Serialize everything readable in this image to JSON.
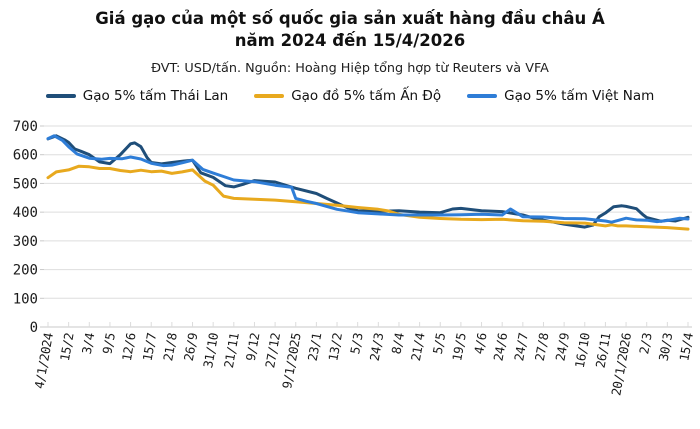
{
  "header": {
    "title_line1": "Giá gạo của một số quốc gia sản xuất hàng đầu châu Á",
    "title_line2": "năm 2024 đến 15/4/2026",
    "subtitle": "ĐVT: USD/tấn. Nguồn: Hoàng Hiệp tổng hợp từ Reuters và VFA"
  },
  "colors": {
    "grid": "#DEDEDE",
    "axis": "#C9C9C9",
    "tick": "#DCDCDC",
    "tick_text": "#1A1A1A",
    "background": "#FFFFFF"
  },
  "chart_data": {
    "type": "line",
    "unit": "USD/tấn",
    "ylim": [
      0,
      700
    ],
    "y_ticks": [
      0,
      100,
      200,
      300,
      400,
      500,
      600,
      700
    ],
    "grid": "horizontal",
    "legend_position": "top",
    "x_labels": [
      "4/1/2024",
      "15/2",
      "3/4",
      "9/5",
      "12/6",
      "15/7",
      "21/8",
      "26/9",
      "31/10",
      "21/11",
      "9/12",
      "27/12",
      "9/1/2025",
      "23/1",
      "13/2",
      "5/3",
      "24/3",
      "8/4",
      "21/4",
      "5/5",
      "19/5",
      "4/6",
      "24/6",
      "24/7",
      "27/8",
      "24/9",
      "16/10",
      "26/11",
      "20/1/2026",
      "2/3",
      "30/3",
      "15/4"
    ],
    "x_note": "points use fractional label-index positions to capture moves between labeled dates",
    "series": [
      {
        "name": "Gạo 5% tấm Thái Lan",
        "color": "#1F4E79",
        "points": [
          [
            0,
            655
          ],
          [
            0.4,
            666
          ],
          [
            0.8,
            652
          ],
          [
            1,
            643
          ],
          [
            1.3,
            620
          ],
          [
            1.6,
            612
          ],
          [
            2,
            600
          ],
          [
            2.5,
            575
          ],
          [
            3,
            569
          ],
          [
            3.5,
            600
          ],
          [
            4,
            638
          ],
          [
            4.2,
            641
          ],
          [
            4.5,
            628
          ],
          [
            4.8,
            590
          ],
          [
            5,
            573
          ],
          [
            5.5,
            568
          ],
          [
            6,
            573
          ],
          [
            6.6,
            578
          ],
          [
            7,
            581
          ],
          [
            7.4,
            537
          ],
          [
            8,
            521
          ],
          [
            8.6,
            492
          ],
          [
            9,
            488
          ],
          [
            9.5,
            498
          ],
          [
            10,
            510
          ],
          [
            11,
            505
          ],
          [
            12,
            483
          ],
          [
            13,
            465
          ],
          [
            13.5,
            448
          ],
          [
            14,
            432
          ],
          [
            14.5,
            415
          ],
          [
            15,
            405
          ],
          [
            16,
            403
          ],
          [
            17,
            405
          ],
          [
            18,
            400
          ],
          [
            19,
            398
          ],
          [
            19.6,
            411
          ],
          [
            20,
            413
          ],
          [
            21,
            405
          ],
          [
            22,
            402
          ],
          [
            23,
            390
          ],
          [
            23.5,
            380
          ],
          [
            24,
            372
          ],
          [
            25,
            358
          ],
          [
            26,
            348
          ],
          [
            26.4,
            355
          ],
          [
            26.7,
            384
          ],
          [
            27,
            397
          ],
          [
            27.4,
            419
          ],
          [
            27.8,
            422
          ],
          [
            28,
            420
          ],
          [
            28.5,
            412
          ],
          [
            28.8,
            392
          ],
          [
            29,
            381
          ],
          [
            29.7,
            368
          ],
          [
            30,
            372
          ],
          [
            30.4,
            369
          ],
          [
            31,
            382
          ]
        ]
      },
      {
        "name": "Gạo đồ 5% tấm Ấn Độ",
        "color": "#E8A91E",
        "points": [
          [
            0,
            520
          ],
          [
            0.4,
            540
          ],
          [
            1,
            547
          ],
          [
            1.5,
            560
          ],
          [
            2,
            558
          ],
          [
            2.5,
            552
          ],
          [
            3,
            552
          ],
          [
            3.5,
            545
          ],
          [
            4,
            541
          ],
          [
            4.5,
            546
          ],
          [
            5,
            541
          ],
          [
            5.5,
            543
          ],
          [
            6,
            535
          ],
          [
            6.5,
            540
          ],
          [
            7,
            547
          ],
          [
            7.6,
            508
          ],
          [
            8,
            494
          ],
          [
            8.5,
            456
          ],
          [
            9,
            448
          ],
          [
            10,
            445
          ],
          [
            11,
            442
          ],
          [
            12,
            436
          ],
          [
            13,
            430
          ],
          [
            14,
            424
          ],
          [
            15,
            416
          ],
          [
            16,
            410
          ],
          [
            16.5,
            404
          ],
          [
            17,
            392
          ],
          [
            18,
            382
          ],
          [
            19,
            378
          ],
          [
            20,
            375
          ],
          [
            21,
            374
          ],
          [
            22,
            375
          ],
          [
            23,
            370
          ],
          [
            24,
            368
          ],
          [
            25,
            363
          ],
          [
            26,
            362
          ],
          [
            26.5,
            357
          ],
          [
            27,
            352
          ],
          [
            27.3,
            356
          ],
          [
            27.6,
            352
          ],
          [
            28,
            352
          ],
          [
            29,
            349
          ],
          [
            30,
            346
          ],
          [
            31,
            341
          ]
        ]
      },
      {
        "name": "Gạo 5% tấm Việt Nam",
        "color": "#2E7DD7",
        "points": [
          [
            0,
            656
          ],
          [
            0.3,
            666
          ],
          [
            0.7,
            650
          ],
          [
            1,
            628
          ],
          [
            1.4,
            603
          ],
          [
            2,
            588
          ],
          [
            2.6,
            584
          ],
          [
            3,
            587
          ],
          [
            3.6,
            586
          ],
          [
            4,
            592
          ],
          [
            4.5,
            585
          ],
          [
            5,
            570
          ],
          [
            5.6,
            562
          ],
          [
            6,
            564
          ],
          [
            6.5,
            572
          ],
          [
            7,
            581
          ],
          [
            7.5,
            549
          ],
          [
            8,
            536
          ],
          [
            8.5,
            524
          ],
          [
            9,
            512
          ],
          [
            10,
            506
          ],
          [
            11,
            494
          ],
          [
            11.8,
            487
          ],
          [
            12,
            448
          ],
          [
            12.5,
            438
          ],
          [
            13,
            430
          ],
          [
            13.5,
            420
          ],
          [
            14,
            410
          ],
          [
            15,
            398
          ],
          [
            16,
            394
          ],
          [
            17,
            390
          ],
          [
            18,
            390
          ],
          [
            19,
            390
          ],
          [
            20,
            391
          ],
          [
            21,
            393
          ],
          [
            22,
            390
          ],
          [
            22.4,
            411
          ],
          [
            23,
            384
          ],
          [
            24,
            383
          ],
          [
            25,
            378
          ],
          [
            26,
            377
          ],
          [
            26.5,
            373
          ],
          [
            27,
            369
          ],
          [
            27.3,
            365
          ],
          [
            27.7,
            373
          ],
          [
            28,
            379
          ],
          [
            28.5,
            373
          ],
          [
            29,
            372
          ],
          [
            29.5,
            367
          ],
          [
            30,
            371
          ],
          [
            30.6,
            379
          ],
          [
            31,
            376
          ]
        ]
      }
    ]
  }
}
